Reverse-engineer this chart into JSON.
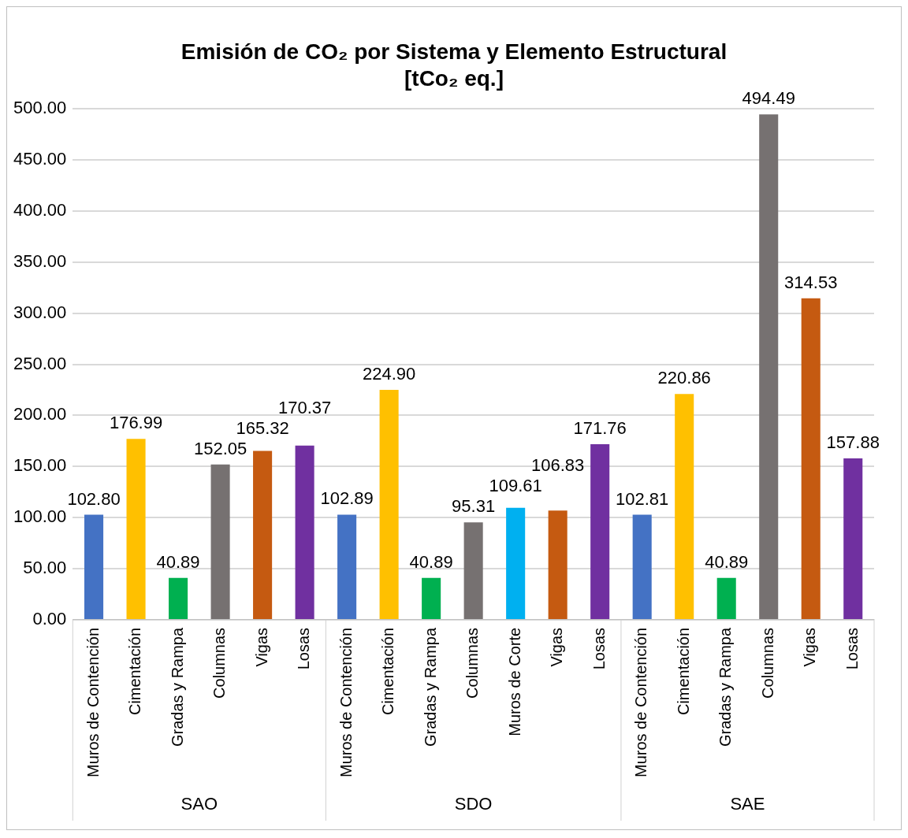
{
  "chart_data": {
    "type": "bar",
    "title": "Emisión de CO₂ por Sistema y Elemento Estructural",
    "subtitle": "[tCo₂ eq.]",
    "categories": [
      "Muros de Contención",
      "Cimentación",
      "Gradas y Rampa",
      "Columnas",
      "Vigas",
      "Losas",
      "Muros de Contención",
      "Cimentación",
      "Gradas y Rampa",
      "Columnas",
      "Muros de Corte",
      "Vigas",
      "Losas",
      "Muros de Contención",
      "Cimentación",
      "Gradas y Rampa",
      "Columnas",
      "Vigas",
      "Losas"
    ],
    "values": [
      102.8,
      176.99,
      40.89,
      152.05,
      165.32,
      170.37,
      102.89,
      224.9,
      40.89,
      95.31,
      109.61,
      106.83,
      171.76,
      102.81,
      220.86,
      40.89,
      494.49,
      314.53,
      157.88
    ],
    "colors": [
      "#4472c4",
      "#ffc000",
      "#00b050",
      "#767171",
      "#c55a11",
      "#7030a0",
      "#4472c4",
      "#ffc000",
      "#00b050",
      "#767171",
      "#00b0f0",
      "#c55a11",
      "#7030a0",
      "#4472c4",
      "#ffc000",
      "#00b050",
      "#767171",
      "#c55a11",
      "#7030a0"
    ],
    "annotations": [
      "SAO",
      "SDO",
      "SAE"
    ],
    "ylim": [
      0,
      500
    ],
    "yticks": [
      {
        "value": 0,
        "label": "0.00"
      },
      {
        "value": 50,
        "label": "50.00"
      },
      {
        "value": 100,
        "label": "100.00"
      },
      {
        "value": 150,
        "label": "150.00"
      },
      {
        "value": 200,
        "label": "200.00"
      },
      {
        "value": 250,
        "label": "250.00"
      },
      {
        "value": 300,
        "label": "300.00"
      },
      {
        "value": 350,
        "label": "350.00"
      },
      {
        "value": 400,
        "label": "400.00"
      },
      {
        "value": 450,
        "label": "450.00"
      },
      {
        "value": 500,
        "label": "500.00"
      }
    ],
    "value_labels": [
      "102.80",
      "176.99",
      "40.89",
      "152.05",
      "165.32",
      "170.37",
      "102.89",
      "224.90",
      "40.89",
      "95.31",
      "109.61",
      "106.83",
      "171.76",
      "102.81",
      "220.86",
      "40.89",
      "494.49",
      "314.53",
      "157.88"
    ],
    "grid": "y",
    "legend": false
  }
}
